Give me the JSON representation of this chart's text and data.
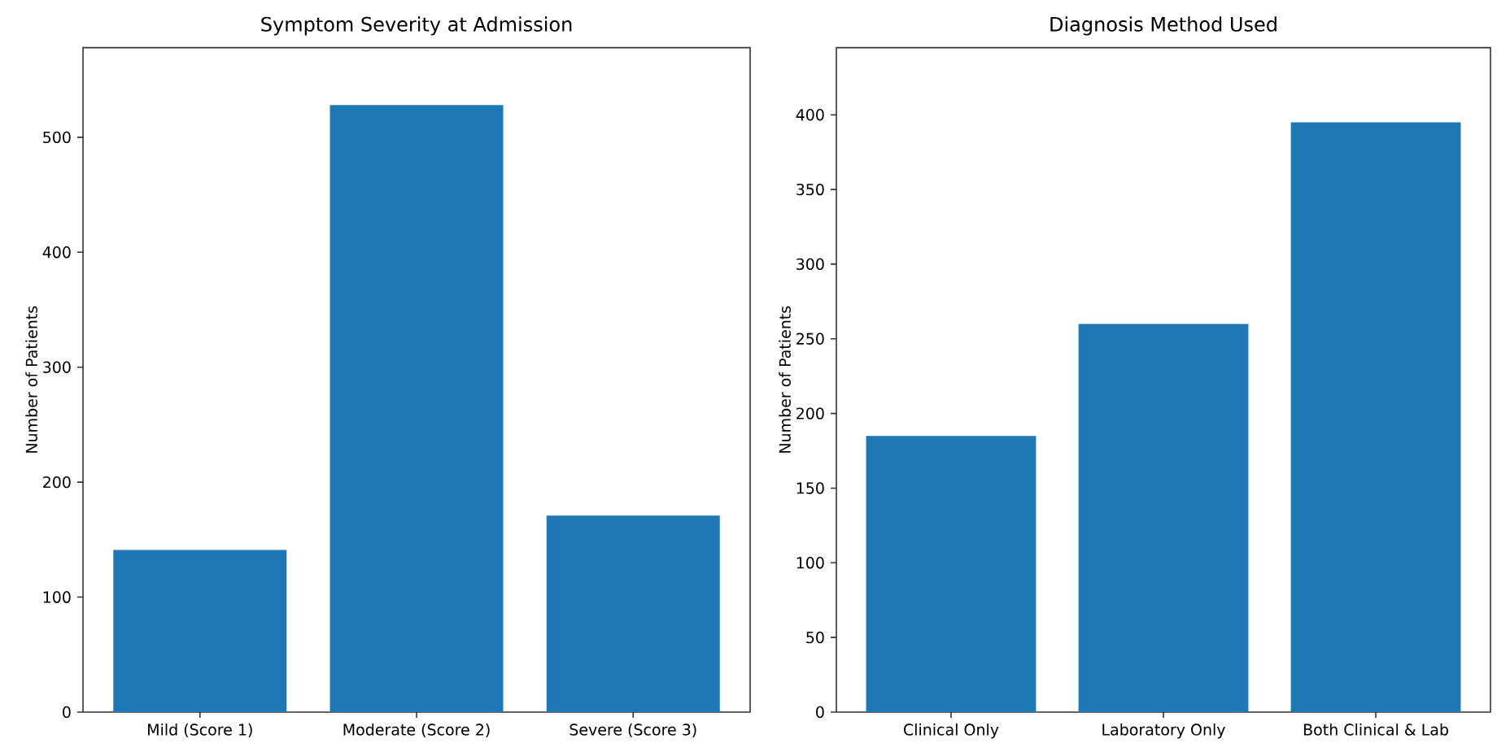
{
  "chart_data": [
    {
      "type": "bar",
      "title": "Symptom Severity at Admission",
      "ylabel": "Number of Patients",
      "categories": [
        "Mild (Score 1)",
        "Moderate (Score 2)",
        "Severe (Score 3)"
      ],
      "values": [
        141,
        528,
        171
      ],
      "color": "#1f77b4",
      "ylim": [
        0,
        578
      ],
      "yticks": [
        0,
        100,
        200,
        300,
        400,
        500
      ]
    },
    {
      "type": "bar",
      "title": "Diagnosis Method Used",
      "ylabel": "Number of Patients",
      "categories": [
        "Clinical Only",
        "Laboratory Only",
        "Both Clinical & Lab"
      ],
      "values": [
        185,
        260,
        395
      ],
      "color": "#1f77b4",
      "ylim": [
        0,
        445
      ],
      "yticks": [
        0,
        50,
        100,
        150,
        200,
        250,
        300,
        350,
        400
      ]
    }
  ]
}
